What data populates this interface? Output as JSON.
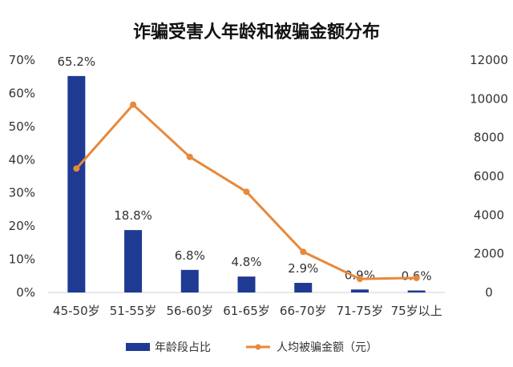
{
  "chart_data": {
    "type": "bar+line",
    "title": "诈骗受害人年龄和被骗金额分布",
    "categories": [
      "45-50岁",
      "51-55岁",
      "56-60岁",
      "61-65岁",
      "66-70岁",
      "71-75岁",
      "75岁以上"
    ],
    "series": [
      {
        "name": "年龄段占比",
        "type": "bar",
        "axis": "left",
        "color": "#1f3a93",
        "values": [
          65.2,
          18.8,
          6.8,
          4.8,
          2.9,
          0.9,
          0.6
        ],
        "labels": [
          "65.2%",
          "18.8%",
          "6.8%",
          "4.8%",
          "2.9%",
          "0.9%",
          "0.6%"
        ]
      },
      {
        "name": "人均被骗金额（元）",
        "type": "line",
        "axis": "right",
        "color": "#e8883a",
        "values": [
          6400,
          9700,
          7000,
          5200,
          2100,
          700,
          750
        ]
      }
    ],
    "y_left": {
      "min": 0,
      "max": 70,
      "step": 10,
      "ticks": [
        "0%",
        "10%",
        "20%",
        "30%",
        "40%",
        "50%",
        "60%",
        "70%"
      ]
    },
    "y_right": {
      "min": 0,
      "max": 12000,
      "step": 2000,
      "ticks": [
        "0",
        "2000",
        "4000",
        "6000",
        "8000",
        "10000",
        "12000"
      ]
    },
    "grid": false,
    "legend_position": "bottom"
  }
}
